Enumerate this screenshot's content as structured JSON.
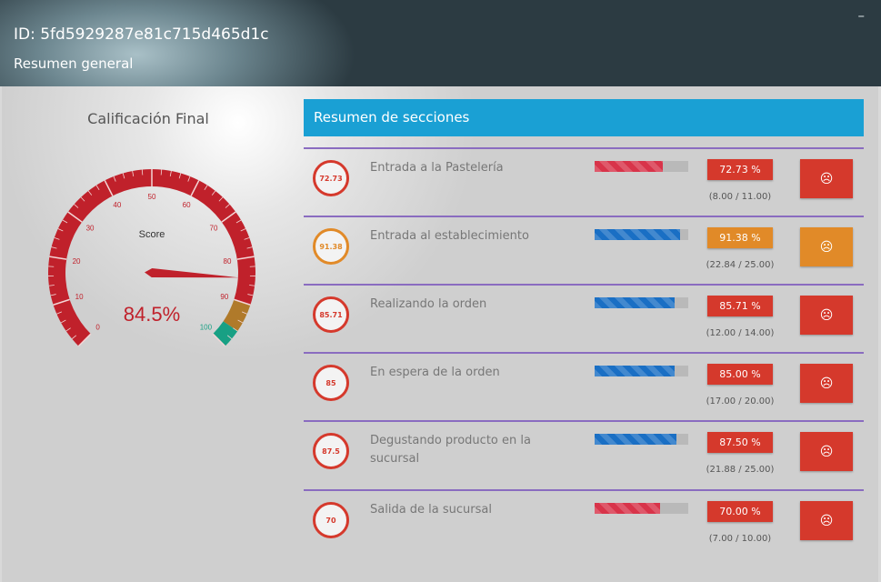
{
  "header": {
    "id_text": "ID: 5fd5929287e81c715d465d1c",
    "subtitle": "Resumen general",
    "minimize": "–"
  },
  "final_score": {
    "title": "Calificación Final",
    "gauge_label": "Score",
    "value_text": "84.5%",
    "value": 84.5,
    "ticks": [
      "0",
      "10",
      "20",
      "30",
      "40",
      "50",
      "60",
      "70",
      "80",
      "90",
      "100"
    ],
    "band_colors": {
      "low": "#c0212b",
      "mid": "#b07a2a",
      "high": "#18a084"
    }
  },
  "sections": {
    "title": "Resumen de secciones",
    "colors": {
      "red": "#d5392c",
      "orange": "#e18a28",
      "blue": "#1a6fc4",
      "barred": "#d8344a"
    },
    "items": [
      {
        "circle": "72.73",
        "name": "Entrada a la Pastelería",
        "percent": 72.73,
        "percent_text": "72.73 %",
        "ratio": "(8.00 / 11.00)",
        "bar_color": "#d8344a",
        "status_color": "#d5392c",
        "icon": "sad-face-icon",
        "icon_glyph": "☹"
      },
      {
        "circle": "91.38",
        "name": "Entrada al establecimiento",
        "percent": 91.38,
        "percent_text": "91.38 %",
        "ratio": "(22.84 / 25.00)",
        "bar_color": "#1a6fc4",
        "status_color": "#e18a28",
        "icon": "sad-face-icon",
        "icon_glyph": "☹"
      },
      {
        "circle": "85.71",
        "name": "Realizando la orden",
        "percent": 85.71,
        "percent_text": "85.71 %",
        "ratio": "(12.00 / 14.00)",
        "bar_color": "#1a6fc4",
        "status_color": "#d5392c",
        "icon": "sad-face-icon",
        "icon_glyph": "☹"
      },
      {
        "circle": "85",
        "name": "En espera de la orden",
        "percent": 85.0,
        "percent_text": "85.00 %",
        "ratio": "(17.00 / 20.00)",
        "bar_color": "#1a6fc4",
        "status_color": "#d5392c",
        "icon": "sad-face-icon",
        "icon_glyph": "☹"
      },
      {
        "circle": "87.5",
        "name": "Degustando producto en la sucursal",
        "percent": 87.5,
        "percent_text": "87.50 %",
        "ratio": "(21.88 / 25.00)",
        "bar_color": "#1a6fc4",
        "status_color": "#d5392c",
        "icon": "sad-face-icon",
        "icon_glyph": "☹"
      },
      {
        "circle": "70",
        "name": "Salida de la sucursal",
        "percent": 70.0,
        "percent_text": "70.00 %",
        "ratio": "(7.00 / 10.00)",
        "bar_color": "#d8344a",
        "status_color": "#d5392c",
        "icon": "sad-face-icon",
        "icon_glyph": "☹"
      }
    ]
  }
}
